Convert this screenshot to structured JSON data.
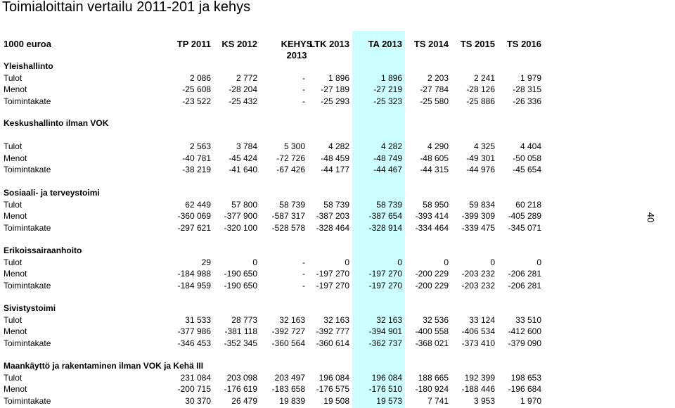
{
  "title": "Toimialoittain vertailu 2011-201 ja kehys",
  "page_number": "40",
  "header": {
    "unit": "1000 euroa",
    "columns": [
      "TP 2011",
      "KS 2012",
      "KEHYS",
      "LTK 2013",
      "TA 2013",
      "TS 2014",
      "TS 2015",
      "TS 2016"
    ],
    "kehys_year": "2013"
  },
  "sections": [
    {
      "name": "Yleishallinto",
      "rows": [
        {
          "label": "Tulot",
          "values": [
            "2 086",
            "2 772",
            "-",
            "1 896",
            "1 896",
            "2 203",
            "2 241",
            "1 979"
          ]
        },
        {
          "label": "Menot",
          "values": [
            "-25 608",
            "-28 204",
            "-",
            "-27 189",
            "-27 219",
            "-27 784",
            "-28 126",
            "-28 315"
          ]
        },
        {
          "label": "Toimintakate",
          "values": [
            "-23 522",
            "-25 432",
            "-",
            "-25 293",
            "-25 323",
            "-25 580",
            "-25 886",
            "-26 336"
          ]
        }
      ]
    },
    {
      "name": "Keskushallinto ilman VOK",
      "rows": [
        {
          "label": "Tulot",
          "values": [
            "2 563",
            "3 784",
            "5 300",
            "4 282",
            "4 282",
            "4 290",
            "4 325",
            "4 404"
          ]
        },
        {
          "label": "Menot",
          "values": [
            "-40 781",
            "-45 424",
            "-72 726",
            "-48 459",
            "-48 749",
            "-48 605",
            "-49 301",
            "-50 058"
          ]
        },
        {
          "label": "Toimintakate",
          "values": [
            "-38 219",
            "-41 640",
            "-67 426",
            "-44 177",
            "-44 467",
            "-44 315",
            "-44 976",
            "-45 654"
          ]
        }
      ]
    },
    {
      "name": "Sosiaali- ja terveystoimi",
      "rows": [
        {
          "label": "Tulot",
          "values": [
            "62 449",
            "57 800",
            "58 739",
            "58 739",
            "58 739",
            "58 950",
            "59 834",
            "60 218"
          ]
        },
        {
          "label": "Menot",
          "values": [
            "-360 069",
            "-377 900",
            "-587 317",
            "-387 203",
            "-387 654",
            "-393 414",
            "-399 309",
            "-405 289"
          ]
        },
        {
          "label": "Toimintakate",
          "values": [
            "-297 621",
            "-320 100",
            "-528 578",
            "-328 464",
            "-328 914",
            "-334 464",
            "-339 475",
            "-345 071"
          ]
        }
      ]
    },
    {
      "name": "Erikoissairaanhoito",
      "rows": [
        {
          "label": "Tulot",
          "values": [
            "29",
            "0",
            "-",
            "0",
            "0",
            "0",
            "0",
            "0"
          ]
        },
        {
          "label": "Menot",
          "values": [
            "-184 988",
            "-190 650",
            "-",
            "-197 270",
            "-197 270",
            "-200 229",
            "-203 232",
            "-206 281"
          ]
        },
        {
          "label": "Toimintakate",
          "values": [
            "-184 959",
            "-190 650",
            "-",
            "-197 270",
            "-197 270",
            "-200 229",
            "-203 232",
            "-206 281"
          ]
        }
      ]
    },
    {
      "name": "Sivistystoimi",
      "rows": [
        {
          "label": "Tulot",
          "values": [
            "31 533",
            "28 773",
            "32 163",
            "32 163",
            "32 163",
            "32 536",
            "33 124",
            "33 510"
          ]
        },
        {
          "label": "Menot",
          "values": [
            "-377 986",
            "-381 118",
            "-392 727",
            "-392 777",
            "-394 901",
            "-400 558",
            "-406 534",
            "-412 600"
          ]
        },
        {
          "label": "Toimintakate",
          "values": [
            "-346 453",
            "-352 345",
            "-360 564",
            "-360 614",
            "-362 737",
            "-368 021",
            "-373 410",
            "-379 090"
          ]
        }
      ]
    },
    {
      "name": "Maankäyttö ja rakentaminen ilman VOK ja Kehä III",
      "rows": [
        {
          "label": "Tulot",
          "values": [
            "231 084",
            "203 098",
            "203 497",
            "196 084",
            "196 084",
            "188 665",
            "192 399",
            "198 653"
          ]
        },
        {
          "label": "Menot",
          "values": [
            "-200 715",
            "-176 619",
            "-183 658",
            "-176 575",
            "-176 510",
            "-180 924",
            "-188 446",
            "-196 684"
          ]
        },
        {
          "label": "Toimintakate",
          "values": [
            "30 370",
            "26 479",
            "19 839",
            "19 508",
            "19 573",
            "7 741",
            "3 953",
            "1 970"
          ]
        }
      ]
    }
  ]
}
